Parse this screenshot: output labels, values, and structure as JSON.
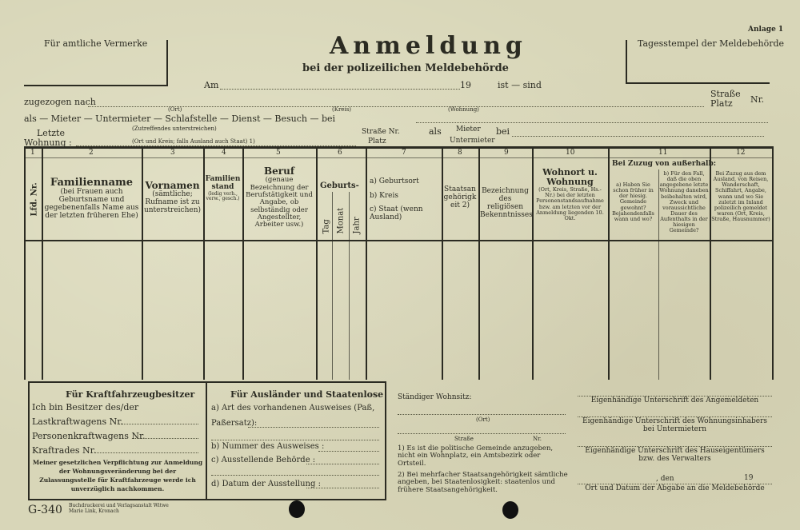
{
  "header": {
    "official_notes": "Für amtliche Vermerke",
    "title": "Anmeldung",
    "subtitle": "bei der polizeilichen Meldebehörde",
    "annex": "Anlage 1",
    "stamp_label": "Tagesstempel der Meldebehörde",
    "am": "Am",
    "year": "19",
    "ist_sind": "ist — sind",
    "zugezogen": "zugezogen nach",
    "ort": "(Ort)",
    "kreis": "(Kreis)",
    "wohnung": "(Wohnung)",
    "strasse_platz": "Straße Platz",
    "nr": "Nr.",
    "als_line": "als — Mieter — Untermieter — Schlafstelle — Dienst — Besuch — bei",
    "zutreffendes": "(Zutreffendes unterstreichen)",
    "letzte": "Letzte",
    "wohnung_label": "Wohnung :",
    "ort_kreis_note": "(Ort und Kreis; falls Ausland auch Staat) 1)",
    "strasse_nr": "Straße Nr.",
    "platz": "Platz",
    "als": "als",
    "mieter": "Mieter",
    "untermieter": "Untermieter",
    "bei": "bei"
  },
  "table": {
    "numbers": [
      "1",
      "2",
      "3",
      "4",
      "5",
      "6",
      "7",
      "8",
      "9",
      "10",
      "11",
      "12"
    ],
    "col1": "Lfd. Nr.",
    "col2_title": "Familienname",
    "col2_note": "(bei Frauen auch Geburtsname und gegebenenfalls Name aus der letzten früheren Ehe)",
    "col3_title": "Vornamen",
    "col3_note": "(sämtliche; Rufname ist zu unterstreichen)",
    "col4_title": "Familienstand",
    "col4_note": "(ledig verh., verw., gesch.)",
    "col5_title": "Beruf",
    "col5_note": "(genaue Bezeichnung der Berufstätigkeit und Angabe, ob selbständig oder Angestellter, Arbeiter usw.)",
    "col6_title": "Geburts-",
    "col6_sub": [
      "Tag",
      "Monat",
      "Jahr"
    ],
    "col7": [
      "a) Geburtsort",
      "b) Kreis",
      "c) Staat (wenn Ausland)"
    ],
    "col8": "Staatsangehörigkeit 2)",
    "col9": "Bezeichnung des religiösen Bekenntnisses",
    "col10_title": "Wohnort u. Wohnung",
    "col10_note": "(Ort, Kreis, Straße, Hs.-Nr.) bei der letzten Personenstandsaufnahme bzw. am letzten vor der Anmeldung liegenden 10. Okt.",
    "col11_title": "Bei Zuzug von außerhalb:",
    "col11a": "a) Haben Sie schon früher in der hiesig. Gemeinde gewohnt? Bejahendenfalls wann und wo?",
    "col11b": "b) Für den Fall, daß die oben angegebene letzte Wohnung daneben beibehalten wird, Zweck und voraussichtliche Dauer des Aufenthalts in der hiesigen Gemeinde?",
    "col12": "Bei Zuzug aus dem Ausland, von Reisen, Wanderschaft, Schiffahrt, Angabe, wann und wo Sie zuletzt im Inland polizeilich gemeldet waren (Ort, Kreis, Straße, Hausnummer)"
  },
  "vehicle": {
    "title": "Für Kraftfahrzeugbesitzer",
    "owner": "Ich bin Besitzer des/der",
    "truck": "Lastkraftwagens Nr.",
    "car": "Personenkraftwagens Nr.",
    "moto": "Kraftrades Nr.",
    "pledge": "Meiner gesetzlichen Verpflichtung zur Anmeldung der Wohnungsveränderung bei der Zulassungsstelle für Kraftfahrzeuge werde ich unverzüglich nachkommen."
  },
  "foreigners": {
    "title": "Für Ausländer und Staatenlose",
    "a": "a) Art des vorhandenen Ausweises (Paß, Paßersatz):",
    "b": "b) Nummer des Ausweises :",
    "c": "c) Ausstellende Behörde :",
    "d": "d) Datum der Ausstellung :"
  },
  "residence": {
    "label": "Ständiger Wohnsitz:",
    "ort": "(Ort)",
    "strasse": "Straße",
    "nr": "Nr."
  },
  "footnotes": {
    "f1": "1) Es ist die politische Gemeinde anzugeben, nicht ein Wohnplatz, ein Amtsbezirk oder Ortsteil.",
    "f2": "2) Bei mehrfacher Staatsangehörigkeit sämtliche angeben, bei Staatenlosigkeit: staatenlos und frühere Staatsangehörigkeit."
  },
  "signatures": {
    "s1": "Eigenhändige Unterschrift des Angemeldeten",
    "s2": "Eigenhändige Unterschrift des Wohnungsinhabers bei Untermietern",
    "s3": "Eigenhändige Unterschrift des Hauseigentümers bzw. des Verwalters",
    "den": ", den",
    "year": "19",
    "s4": "Ort und Datum der Abgabe an die Meldebehörde"
  },
  "imprint": {
    "form": "G-340",
    "printer": "Buchdruckerei und Verlagsanstalt Witwe Marie Link, Kronach"
  }
}
